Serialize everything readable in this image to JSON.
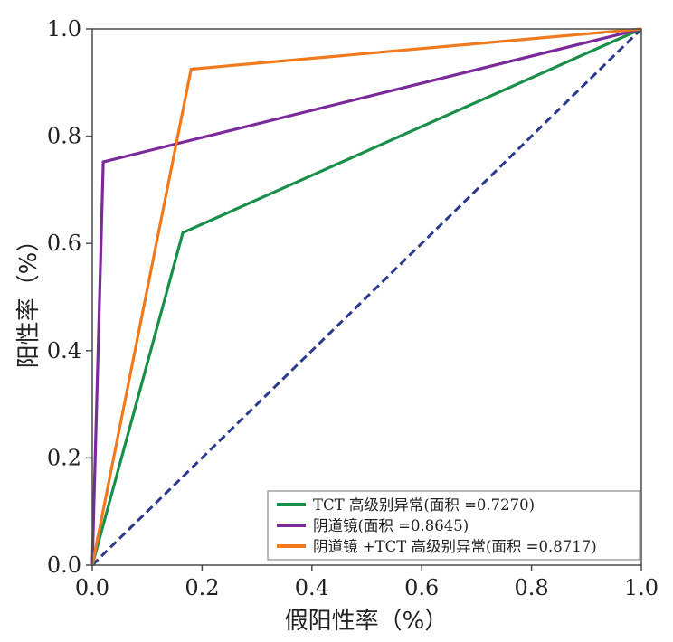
{
  "chart_data": {
    "type": "line",
    "xlabel": "假阳性率（%）",
    "ylabel": "阳性率（%）",
    "xlim": [
      0.0,
      1.0
    ],
    "ylim": [
      0.0,
      1.0
    ],
    "x_ticks": [
      "0.0",
      "0.2",
      "0.4",
      "0.6",
      "0.8",
      "1.0"
    ],
    "y_ticks": [
      "0.0",
      "0.2",
      "0.4",
      "0.6",
      "0.8",
      "1.0"
    ],
    "grid": false,
    "legend_position": "bottom-right",
    "series": [
      {
        "name": "TCT 高级别异常(面积 =0.7270)",
        "color": "#1a8f4a",
        "points": [
          [
            0.0,
            0.0
          ],
          [
            0.165,
            0.62
          ],
          [
            1.0,
            1.0
          ]
        ]
      },
      {
        "name": "阴道镜(面积 =0.8645)",
        "color": "#7b2a9a",
        "points": [
          [
            0.0,
            0.0
          ],
          [
            0.02,
            0.752
          ],
          [
            1.0,
            1.0
          ]
        ]
      },
      {
        "name": "阴道镜 +TCT 高级别异常(面积 =0.8717)",
        "color": "#f07a1e",
        "points": [
          [
            0.0,
            0.0
          ],
          [
            0.18,
            0.925
          ],
          [
            1.0,
            1.0
          ]
        ]
      }
    ],
    "reference_line": {
      "style": "dashed",
      "color": "#2b3a8c",
      "points": [
        [
          0.0,
          0.0
        ],
        [
          1.0,
          1.0
        ]
      ]
    }
  }
}
